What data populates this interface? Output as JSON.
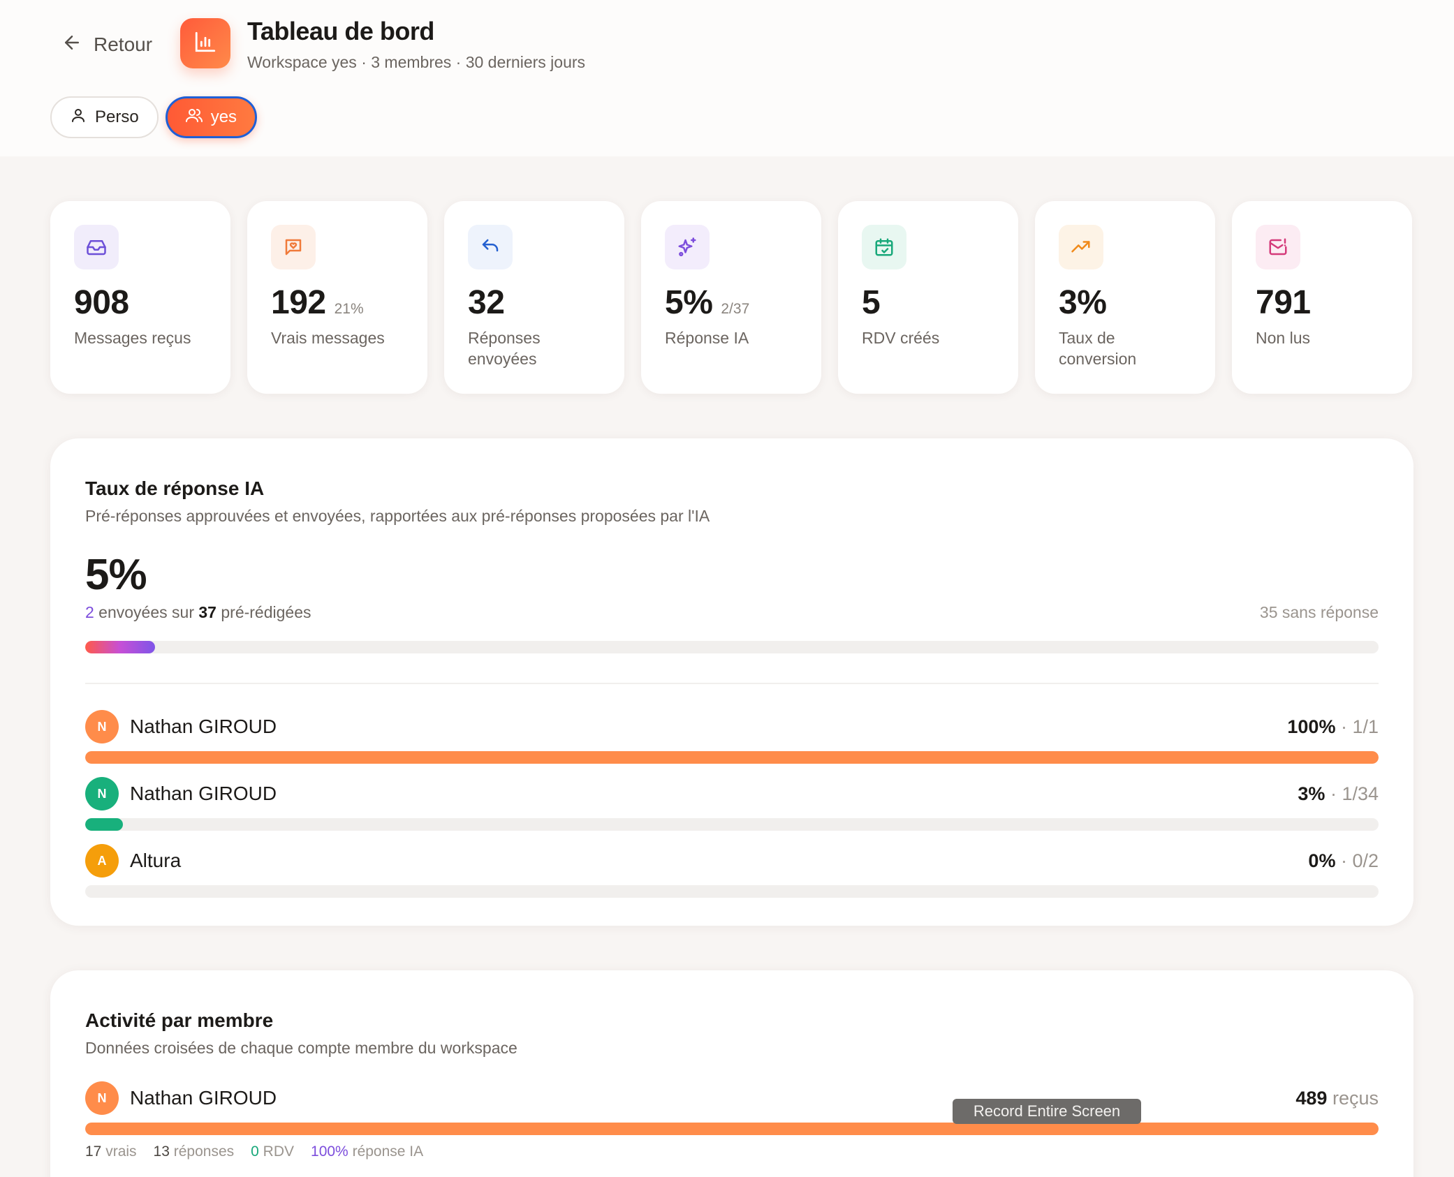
{
  "header": {
    "back_label": "Retour",
    "title": "Tableau de bord",
    "subtitle": "Workspace yes · 3 membres · 30 derniers jours",
    "tabs": [
      {
        "label": "Perso",
        "icon": "user-icon"
      },
      {
        "label": "yes",
        "icon": "users-icon",
        "active": true
      }
    ]
  },
  "stats": [
    {
      "value": "908",
      "extra": "",
      "label": "Messages reçus",
      "icon": "inbox-icon",
      "color": "#6c4fd8"
    },
    {
      "value": "192",
      "extra": "21%",
      "label": "Vrais messages",
      "icon": "message-heart-icon",
      "color": "#f07a3a"
    },
    {
      "value": "32",
      "extra": "",
      "label": "Réponses envoyées",
      "icon": "reply-icon",
      "color": "#2460d0"
    },
    {
      "value": "5%",
      "extra": "2/37",
      "label": "Réponse IA",
      "icon": "sparkles-icon",
      "color": "#7c4ddc"
    },
    {
      "value": "5",
      "extra": "",
      "label": "RDV créés",
      "icon": "calendar-check-icon",
      "color": "#18a87a"
    },
    {
      "value": "3%",
      "extra": "",
      "label": "Taux de conversion",
      "icon": "trending-up-icon",
      "color": "#f08a1a"
    },
    {
      "value": "791",
      "extra": "",
      "label": "Non lus",
      "icon": "mail-alert-icon",
      "color": "#d43a7a"
    }
  ],
  "ai_panel": {
    "title": "Taux de réponse IA",
    "description": "Pré-réponses approuvées et envoyées, rapportées aux pré-réponses proposées par l'IA",
    "rate": "5%",
    "rate_fraction": 0.054,
    "sent": "2",
    "sent_text_a": " envoyées sur ",
    "drafted": "37",
    "sent_text_b": " pré-rédigées",
    "no_reply": "35 sans réponse",
    "members": [
      {
        "initial": "N",
        "name": "Nathan GIROUD",
        "pct": "100%",
        "ratio": "1/1",
        "fraction": 1.0,
        "color": "#ff8c4a"
      },
      {
        "initial": "N",
        "name": "Nathan GIROUD",
        "pct": "3%",
        "ratio": "1/34",
        "fraction": 0.029,
        "color": "#18b07c"
      },
      {
        "initial": "A",
        "name": "Altura",
        "pct": "0%",
        "ratio": "0/2",
        "fraction": 0.0,
        "color": "#f59e0b"
      }
    ]
  },
  "activity_panel": {
    "title": "Activité par membre",
    "description": "Données croisées de chaque compte membre du workspace",
    "members": [
      {
        "initial": "N",
        "name": "Nathan GIROUD",
        "received": "489",
        "received_label": "reçus",
        "fraction": 1.0,
        "color": "#ff8c4a",
        "true_count": "17",
        "true_label": "vrais",
        "replies_count": "13",
        "replies_label": "réponses",
        "rdv_count": "0",
        "rdv_label": "RDV",
        "ai_rate": "100%",
        "ai_label": "réponse IA"
      }
    ]
  },
  "overlay": {
    "tooltip": "Record Entire Screen"
  }
}
